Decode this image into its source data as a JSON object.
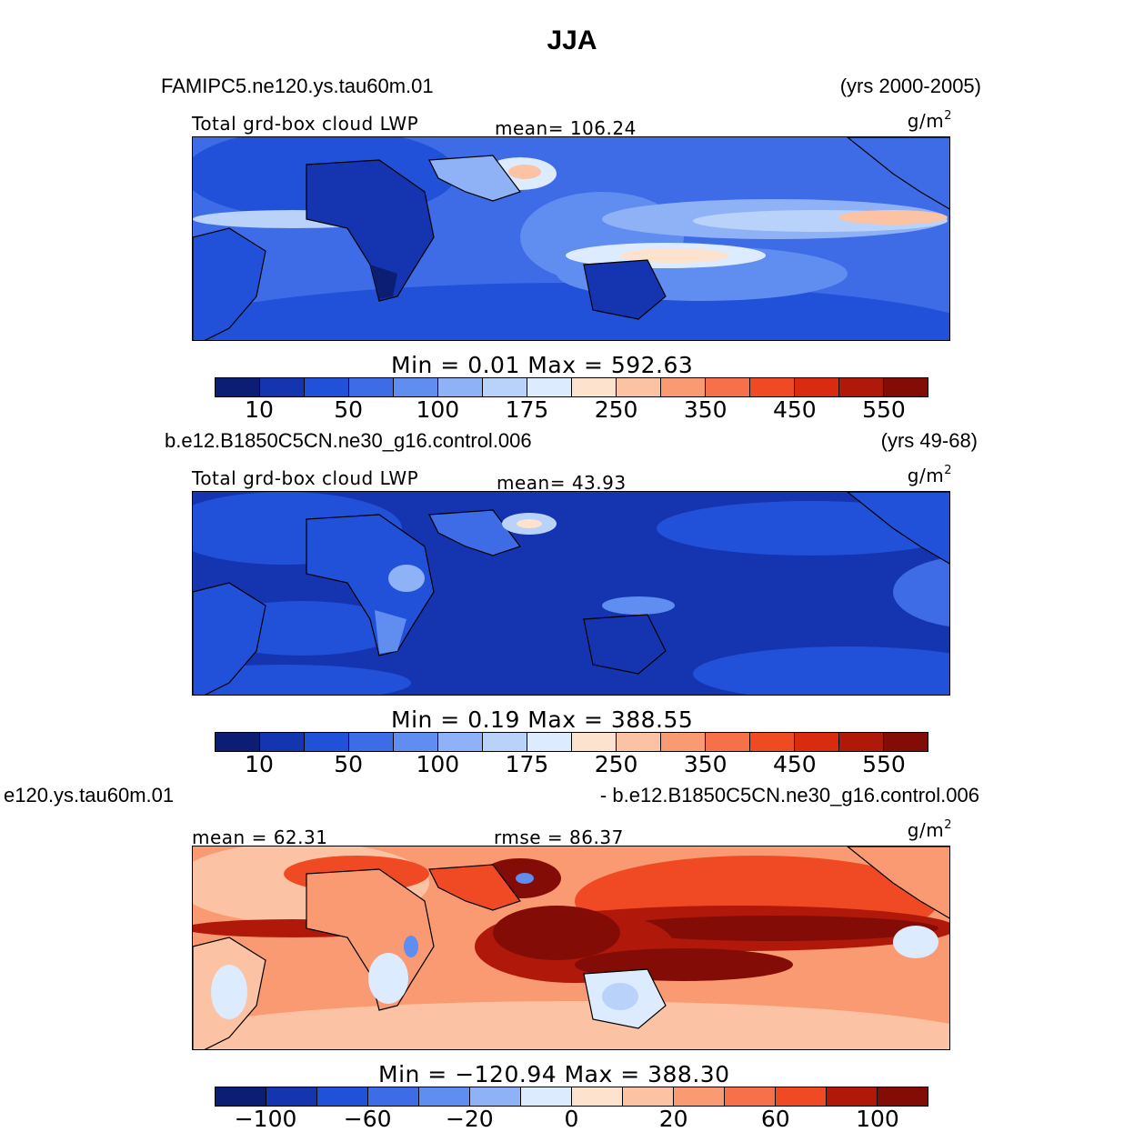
{
  "figure_title": "JJA",
  "chart_data": [
    {
      "type": "heatmap",
      "case_name": "FAMIPC5.ne120.ys.tau60m.01",
      "years": "(yrs 2000-2005)",
      "variable_label": "Total grd-box cloud LWP",
      "stat_label": "mean= 106.24",
      "units_text": "g/m",
      "units_exp": "2",
      "min_max_label": "Min =    0.01  Max  =  592.63",
      "min": 0.01,
      "max": 592.63,
      "mean": 106.24,
      "colorbar_ticks": [
        "10",
        "50",
        "100",
        "175",
        "250",
        "350",
        "450",
        "550"
      ],
      "colorbar_colors": [
        "#0c1d74",
        "#1434b0",
        "#2151d8",
        "#3e6ce6",
        "#5f8df0",
        "#8fb2f6",
        "#b8d2fa",
        "#dcebfd",
        "#fde2cd",
        "#fcc2a4",
        "#fa9a72",
        "#f6714a",
        "#ef4a24",
        "#d92b10",
        "#b0180a",
        "#840c07"
      ],
      "map_palette": "blue-red"
    },
    {
      "type": "heatmap",
      "case_name": "b.e12.B1850C5CN.ne30_g16.control.006",
      "years": "(yrs 49-68)",
      "variable_label": "Total grd-box cloud LWP",
      "stat_label": "mean=  43.93",
      "units_text": "g/m",
      "units_exp": "2",
      "min_max_label": "Min =    0.19  Max  =  388.55",
      "min": 0.19,
      "max": 388.55,
      "mean": 43.93,
      "colorbar_ticks": [
        "10",
        "50",
        "100",
        "175",
        "250",
        "350",
        "450",
        "550"
      ],
      "colorbar_colors": [
        "#0c1d74",
        "#1434b0",
        "#2151d8",
        "#3e6ce6",
        "#5f8df0",
        "#8fb2f6",
        "#b8d2fa",
        "#dcebfd",
        "#fde2cd",
        "#fcc2a4",
        "#fa9a72",
        "#f6714a",
        "#ef4a24",
        "#d92b10",
        "#b0180a",
        "#840c07"
      ],
      "map_palette": "mostly-blue"
    },
    {
      "type": "heatmap",
      "case_name_left": "e120.ys.tau60m.01",
      "case_name_right": "- b.e12.B1850C5CN.ne30_g16.control.006",
      "stat_label": "mean =   62.31",
      "rmse_label": "rmse =   86.37",
      "units_text": "g/m",
      "units_exp": "2",
      "min_max_label": "Min  =  −120.94  Max  =  388.30",
      "min": -120.94,
      "max": 388.3,
      "mean": 62.31,
      "rmse": 86.37,
      "colorbar_ticks": [
        "−100",
        "−60",
        "−20",
        "0",
        "20",
        "60",
        "100"
      ],
      "colorbar_colors": [
        "#0c1d74",
        "#1434b0",
        "#2151d8",
        "#3e6ce6",
        "#5f8df0",
        "#8fb2f6",
        "#dcebfd",
        "#fde2cd",
        "#fcc2a4",
        "#fa9a72",
        "#f6714a",
        "#ef4a24",
        "#b0180a",
        "#840c07"
      ],
      "map_palette": "mostly-red"
    }
  ]
}
